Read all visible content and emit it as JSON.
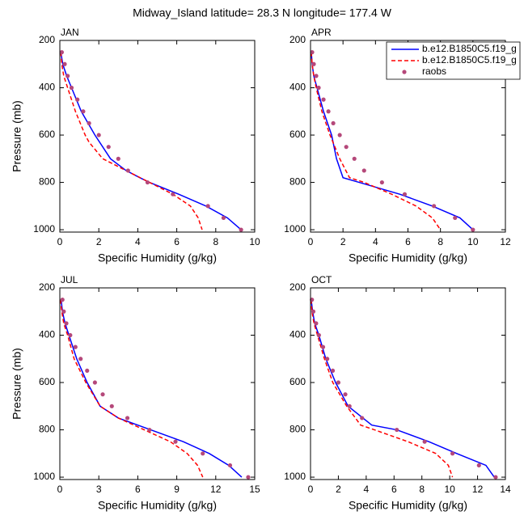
{
  "title": "Midway_Island  latitude= 28.3 N longitude= 177.4 W",
  "chart_data": [
    {
      "type": "line",
      "title": "JAN",
      "xlabel": "Specific Humidity (g/kg)",
      "ylabel": "Pressure (mb)",
      "xlim": [
        0,
        10
      ],
      "xticks": [
        0,
        2,
        4,
        6,
        8,
        10
      ],
      "ylim": [
        1010,
        200
      ],
      "yticks": [
        200,
        400,
        600,
        800,
        1000
      ],
      "series": [
        {
          "name": "b.e12.B1850C5.f19_g",
          "color": "#0000ff",
          "dash": false,
          "pressure": [
            250,
            300,
            350,
            400,
            500,
            600,
            700,
            750,
            780,
            800,
            850,
            900,
            950,
            1000
          ],
          "values": [
            0.05,
            0.15,
            0.35,
            0.6,
            1.1,
            1.8,
            2.6,
            3.4,
            4.1,
            4.6,
            6.1,
            7.5,
            8.6,
            9.3
          ]
        },
        {
          "name": "b.e12.B1850C5.f19_g",
          "color": "#ff0000",
          "dash": true,
          "pressure": [
            250,
            300,
            350,
            400,
            500,
            600,
            630,
            700,
            750,
            800,
            850,
            900,
            950,
            1000
          ],
          "values": [
            0.05,
            0.1,
            0.2,
            0.4,
            0.8,
            1.3,
            1.5,
            2.2,
            3.4,
            4.6,
            5.8,
            6.7,
            7.1,
            7.3
          ]
        },
        {
          "name": "raobs",
          "color": "#b5487a",
          "marker": true,
          "pressure": [
            250,
            300,
            350,
            400,
            450,
            500,
            550,
            600,
            650,
            700,
            750,
            800,
            850,
            900,
            950,
            1000
          ],
          "values": [
            0.1,
            0.25,
            0.4,
            0.6,
            0.9,
            1.2,
            1.5,
            2.0,
            2.5,
            3.0,
            3.5,
            4.5,
            5.8,
            7.6,
            8.4,
            9.3
          ]
        }
      ]
    },
    {
      "type": "line",
      "title": "APR",
      "xlabel": "Specific Humidity (g/kg)",
      "legend": "upper right",
      "xlim": [
        0,
        12
      ],
      "xticks": [
        0,
        2,
        4,
        6,
        8,
        10,
        12
      ],
      "ylim": [
        1010,
        200
      ],
      "yticks": [
        200,
        400,
        600,
        800,
        1000
      ],
      "series": [
        {
          "name": "b.e12.B1850C5.f19_g",
          "color": "#0000ff",
          "dash": false,
          "pressure": [
            250,
            300,
            350,
            400,
            500,
            600,
            700,
            780,
            800,
            850,
            900,
            950,
            1000
          ],
          "values": [
            0.05,
            0.1,
            0.2,
            0.4,
            0.8,
            1.3,
            1.6,
            2.0,
            3.0,
            5.5,
            7.5,
            9.2,
            10.0
          ]
        },
        {
          "name": "b.e12.B1850C5.f19_g",
          "color": "#ff0000",
          "dash": true,
          "pressure": [
            250,
            300,
            350,
            400,
            500,
            600,
            700,
            780,
            800,
            850,
            900,
            950,
            1000
          ],
          "values": [
            0.05,
            0.1,
            0.2,
            0.35,
            0.7,
            1.2,
            1.8,
            2.4,
            3.3,
            5.0,
            6.5,
            7.5,
            8.0
          ]
        },
        {
          "name": "raobs",
          "color": "#b5487a",
          "marker": true,
          "pressure": [
            250,
            300,
            350,
            400,
            450,
            500,
            550,
            600,
            650,
            700,
            750,
            800,
            850,
            900,
            950,
            1000
          ],
          "values": [
            0.1,
            0.2,
            0.35,
            0.5,
            0.8,
            1.1,
            1.4,
            1.8,
            2.2,
            2.7,
            3.3,
            4.4,
            5.8,
            7.6,
            8.9,
            10.0
          ]
        }
      ]
    },
    {
      "type": "line",
      "title": "JUL",
      "xlabel": "Specific Humidity (g/kg)",
      "ylabel": "Pressure (mb)",
      "xlim": [
        0,
        15
      ],
      "xticks": [
        0,
        3,
        6,
        9,
        12,
        15
      ],
      "ylim": [
        1010,
        200
      ],
      "yticks": [
        200,
        400,
        600,
        800,
        1000
      ],
      "series": [
        {
          "name": "b.e12.B1850C5.f19_g",
          "color": "#0000ff",
          "dash": false,
          "pressure": [
            250,
            300,
            350,
            400,
            500,
            600,
            700,
            750,
            800,
            850,
            900,
            950,
            1000
          ],
          "values": [
            0.1,
            0.2,
            0.4,
            0.7,
            1.3,
            2.1,
            3.1,
            4.5,
            7.0,
            9.5,
            11.5,
            13.0,
            14.0
          ]
        },
        {
          "name": "b.e12.B1850C5.f19_g",
          "color": "#ff0000",
          "dash": true,
          "pressure": [
            250,
            300,
            350,
            400,
            500,
            600,
            700,
            750,
            800,
            850,
            900,
            950,
            1000
          ],
          "values": [
            0.05,
            0.15,
            0.3,
            0.6,
            1.1,
            2.0,
            3.1,
            4.5,
            6.5,
            8.5,
            9.8,
            10.6,
            11.0
          ]
        },
        {
          "name": "raobs",
          "color": "#b5487a",
          "marker": true,
          "pressure": [
            250,
            300,
            350,
            400,
            450,
            500,
            550,
            600,
            650,
            700,
            750,
            800,
            850,
            900,
            950,
            1000
          ],
          "values": [
            0.2,
            0.3,
            0.5,
            0.8,
            1.2,
            1.6,
            2.1,
            2.7,
            3.3,
            4.0,
            5.2,
            6.9,
            8.9,
            11.0,
            13.1,
            14.5
          ]
        }
      ]
    },
    {
      "type": "line",
      "title": "OCT",
      "xlabel": "Specific Humidity (g/kg)",
      "xlim": [
        0,
        14
      ],
      "xticks": [
        0,
        2,
        4,
        6,
        8,
        10,
        12,
        14
      ],
      "ylim": [
        1010,
        200
      ],
      "yticks": [
        200,
        400,
        600,
        800,
        1000
      ],
      "series": [
        {
          "name": "b.e12.B1850C5.f19_g",
          "color": "#0000ff",
          "dash": false,
          "pressure": [
            250,
            300,
            350,
            400,
            500,
            600,
            700,
            780,
            800,
            850,
            900,
            950,
            1000
          ],
          "values": [
            0.05,
            0.15,
            0.3,
            0.6,
            1.1,
            1.8,
            2.7,
            4.4,
            6.2,
            8.5,
            10.5,
            12.6,
            13.2
          ]
        },
        {
          "name": "b.e12.B1850C5.f19_g",
          "color": "#ff0000",
          "dash": true,
          "pressure": [
            250,
            300,
            350,
            400,
            500,
            600,
            700,
            780,
            800,
            850,
            900,
            950,
            1000
          ],
          "values": [
            0.05,
            0.1,
            0.25,
            0.5,
            1.0,
            1.6,
            2.6,
            3.6,
            4.6,
            7.0,
            9.0,
            9.9,
            10.2
          ]
        },
        {
          "name": "raobs",
          "color": "#b5487a",
          "marker": true,
          "pressure": [
            250,
            300,
            350,
            400,
            450,
            500,
            550,
            600,
            650,
            700,
            750,
            800,
            850,
            900,
            950,
            1000
          ],
          "values": [
            0.1,
            0.2,
            0.4,
            0.6,
            0.9,
            1.2,
            1.6,
            2.0,
            2.5,
            2.8,
            3.7,
            6.2,
            8.2,
            10.2,
            12.1,
            13.3
          ]
        }
      ]
    }
  ]
}
